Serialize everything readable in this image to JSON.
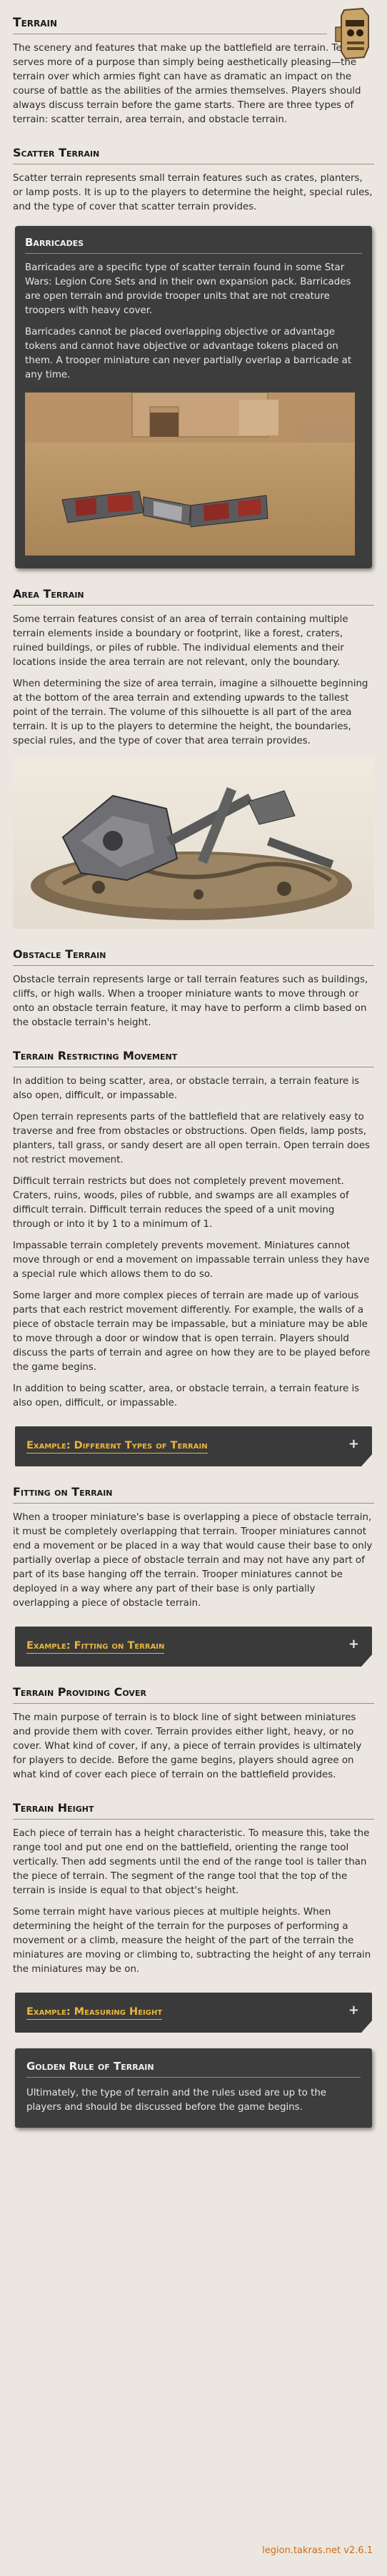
{
  "title": "Terrain",
  "intro": "The scenery and features that make up the battlefield are terrain. Terrain serves more of a purpose than simply being aesthetically pleasing—the terrain over which armies fight can have as dramatic an impact on the course of battle as the abilities of the armies themselves. Players should always discuss terrain before the game starts. There are three types of terrain: scatter terrain, area terrain, and obstacle terrain.",
  "scatter": {
    "heading": "Scatter Terrain",
    "text": "Scatter terrain represents small terrain features such as crates, planters, or lamp posts. It is up to the players to determine the height, special rules, and the type of cover that scatter terrain provides."
  },
  "barricades": {
    "title": "Barricades",
    "p1": "Barricades are a specific type of scatter terrain found in some Star Wars: Legion Core Sets and in their own expansion pack. Barricades are open terrain and provide trooper units that are not creature troopers with heavy cover.",
    "p2": "Barricades cannot be placed overlapping objective or advantage tokens and cannot have objective or advantage tokens placed on them. A trooper miniature can never partially overlap a barricade at any time."
  },
  "area": {
    "heading": "Area Terrain",
    "p1": "Some terrain features consist of an area of terrain containing multiple terrain elements inside a boundary or footprint, like a forest, craters, ruined buildings, or piles of rubble. The individual elements and their locations inside the area terrain are not relevant, only the boundary.",
    "p2": "When determining the size of area terrain, imagine a silhouette beginning at the bottom of the area terrain and extending upwards to the tallest point of the terrain. The volume of this silhouette is all part of the area terrain. It is up to the players to determine the height, the boundaries, special rules, and the type of cover that area terrain provides."
  },
  "obstacle": {
    "heading": "Obstacle Terrain",
    "text": "Obstacle terrain represents large or tall terrain features such as buildings, cliffs, or high walls. When a trooper miniature wants to move through or onto an obstacle terrain feature, it may have to perform a climb based on the obstacle terrain's height."
  },
  "restricting": {
    "heading": "Terrain Restricting Movement",
    "p1": "In addition to being scatter, area, or obstacle terrain, a terrain feature is also open, difficult, or impassable.",
    "p2": "Open terrain represents parts of the battlefield that are relatively easy to traverse and free from obstacles or obstructions. Open fields, lamp posts, planters, tall grass, or sandy desert are all open terrain. Open terrain does not restrict movement.",
    "p3": "Difficult terrain restricts but does not completely prevent movement. Craters, ruins, woods, piles of rubble, and swamps are all examples of difficult terrain. Difficult terrain reduces the speed of a unit moving through or into it by 1 to a minimum of 1.",
    "p4": "Impassable terrain completely prevents movement. Miniatures cannot move through or end a movement on impassable terrain unless they have a special rule which allows them to do so.",
    "p5": "Some larger and more complex pieces of terrain are made up of various parts that each restrict movement differently. For example, the walls of a piece of obstacle terrain may be impassable, but a miniature may be able to move through a door or window that is open terrain. Players should discuss the parts of terrain and agree on how they are to be played before the game begins.",
    "p6": "In addition to being scatter, area, or obstacle terrain, a terrain feature is also open, difficult, or impassable.",
    "example": "Example: Different Types of Terrain"
  },
  "fitting": {
    "heading": "Fitting on Terrain",
    "text": "When a trooper miniature's base is overlapping a piece of obstacle terrain, it must be completely overlapping that terrain. Trooper miniatures cannot end a movement or be placed in a way that would cause their base to only partially overlap a piece of obstacle terrain and may not have any part of part of its base hanging off the terrain. Trooper miniatures cannot be deployed in a way where any part of their base is only partially overlapping a piece of obstacle terrain.",
    "example": "Example: Fitting on Terrain"
  },
  "cover": {
    "heading": "Terrain Providing Cover",
    "text": "The main purpose of terrain is to block line of sight between miniatures and provide them with cover. Terrain provides either light, heavy, or no cover. What kind of cover, if any, a piece of terrain provides is ultimately for players to decide. Before the game begins, players should agree on what kind of cover each piece of terrain on the battlefield provides."
  },
  "height": {
    "heading": "Terrain Height",
    "p1": "Each piece of terrain has a height characteristic. To measure this, take the range tool and put one end on the battlefield, orienting the range tool vertically. Then add segments until the end of the range tool is taller than the piece of terrain. The segment of the range tool that the top of the terrain is inside is equal to that object's height.",
    "p2": "Some terrain might have various pieces at multiple heights. When determining the height of the terrain for the purposes of performing a movement or a climb, measure the height of the part of the terrain the miniatures are moving or climbing to, subtracting the height of any terrain the miniatures may be on.",
    "example": "Example: Measuring Height"
  },
  "golden": {
    "title": "Golden Rule of Terrain",
    "text": "Ultimately, the type of terrain and the rules used are up to the players and should be discussed before the game begins."
  },
  "footer": "legion.takras.net v2.6.1",
  "expand_glyph": "+",
  "colors": {
    "accent": "#e9b63e",
    "footer": "#d06a1a",
    "box": "#3d3d3d"
  },
  "icons": {
    "header": "droid-head-icon",
    "expand": "plus-icon"
  }
}
